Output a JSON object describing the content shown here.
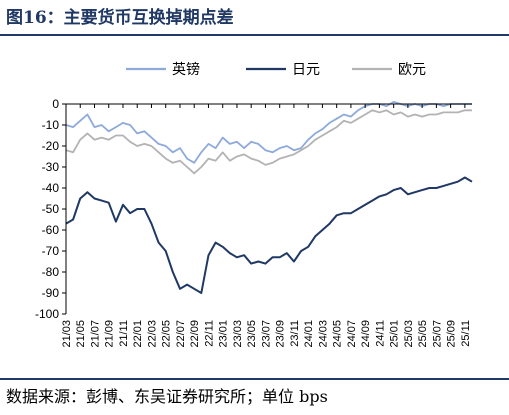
{
  "title": "图16：主要货币互换掉期点差",
  "source": "数据来源：彭博、东吴证券研究所；单位 bps",
  "chart_data": {
    "type": "line",
    "ylim": [
      -100,
      0
    ],
    "yticks": [
      0,
      -10,
      -20,
      -30,
      -40,
      -50,
      -60,
      -70,
      -80,
      -90,
      -100
    ],
    "xlim": [
      "2021-03",
      "2025-12"
    ],
    "xticks": [
      "21/03",
      "21/05",
      "21/07",
      "21/09",
      "21/11",
      "22/01",
      "22/03",
      "22/05",
      "22/07",
      "22/09",
      "22/11",
      "23/01",
      "23/03",
      "23/05",
      "23/07",
      "23/09",
      "23/11",
      "24/01",
      "24/03",
      "24/05",
      "24/07",
      "24/09",
      "24/11",
      "25/01",
      "25/03",
      "25/05",
      "25/07",
      "25/09",
      "25/11"
    ],
    "legend_position": "top",
    "grid": false,
    "series": [
      {
        "name": "英镑",
        "color": "#8eaadb",
        "points": [
          [
            "2021-03",
            -10
          ],
          [
            "2021-04",
            -11
          ],
          [
            "2021-05",
            -8
          ],
          [
            "2021-06",
            -5
          ],
          [
            "2021-07",
            -11
          ],
          [
            "2021-08",
            -10
          ],
          [
            "2021-09",
            -13
          ],
          [
            "2021-10",
            -11
          ],
          [
            "2021-11",
            -9
          ],
          [
            "2021-12",
            -10
          ],
          [
            "2022-01",
            -14
          ],
          [
            "2022-02",
            -13
          ],
          [
            "2022-03",
            -16
          ],
          [
            "2022-04",
            -19
          ],
          [
            "2022-05",
            -20
          ],
          [
            "2022-06",
            -23
          ],
          [
            "2022-07",
            -21
          ],
          [
            "2022-08",
            -26
          ],
          [
            "2022-09",
            -28
          ],
          [
            "2022-10",
            -23
          ],
          [
            "2022-11",
            -19
          ],
          [
            "2022-12",
            -21
          ],
          [
            "2023-01",
            -16
          ],
          [
            "2023-02",
            -19
          ],
          [
            "2023-03",
            -18
          ],
          [
            "2023-04",
            -21
          ],
          [
            "2023-05",
            -18
          ],
          [
            "2023-06",
            -19
          ],
          [
            "2023-07",
            -22
          ],
          [
            "2023-08",
            -23
          ],
          [
            "2023-09",
            -21
          ],
          [
            "2023-10",
            -20
          ],
          [
            "2023-11",
            -22
          ],
          [
            "2023-12",
            -21
          ],
          [
            "2024-01",
            -17
          ],
          [
            "2024-02",
            -14
          ],
          [
            "2024-03",
            -12
          ],
          [
            "2024-04",
            -9
          ],
          [
            "2024-05",
            -7
          ],
          [
            "2024-06",
            -5
          ],
          [
            "2024-07",
            -6
          ],
          [
            "2024-08",
            -3
          ],
          [
            "2024-09",
            -1
          ],
          [
            "2024-10",
            0
          ],
          [
            "2024-11",
            0
          ],
          [
            "2024-12",
            -1
          ],
          [
            "2025-01",
            1
          ],
          [
            "2025-02",
            0
          ],
          [
            "2025-03",
            -1
          ],
          [
            "2025-04",
            0
          ],
          [
            "2025-05",
            -1
          ],
          [
            "2025-06",
            0
          ],
          [
            "2025-07",
            0
          ],
          [
            "2025-08",
            -1
          ],
          [
            "2025-09",
            0
          ],
          [
            "2025-10",
            0
          ],
          [
            "2025-11",
            0
          ],
          [
            "2025-12",
            0
          ]
        ]
      },
      {
        "name": "日元",
        "color": "#1f3864",
        "points": [
          [
            "2021-03",
            -57
          ],
          [
            "2021-04",
            -55
          ],
          [
            "2021-05",
            -45
          ],
          [
            "2021-06",
            -42
          ],
          [
            "2021-07",
            -45
          ],
          [
            "2021-08",
            -46
          ],
          [
            "2021-09",
            -47
          ],
          [
            "2021-10",
            -56
          ],
          [
            "2021-11",
            -48
          ],
          [
            "2021-12",
            -52
          ],
          [
            "2022-01",
            -50
          ],
          [
            "2022-02",
            -50
          ],
          [
            "2022-03",
            -57
          ],
          [
            "2022-04",
            -66
          ],
          [
            "2022-05",
            -70
          ],
          [
            "2022-06",
            -80
          ],
          [
            "2022-07",
            -88
          ],
          [
            "2022-08",
            -86
          ],
          [
            "2022-09",
            -88
          ],
          [
            "2022-10",
            -90
          ],
          [
            "2022-11",
            -72
          ],
          [
            "2022-12",
            -66
          ],
          [
            "2023-01",
            -68
          ],
          [
            "2023-02",
            -71
          ],
          [
            "2023-03",
            -73
          ],
          [
            "2023-04",
            -72
          ],
          [
            "2023-05",
            -76
          ],
          [
            "2023-06",
            -75
          ],
          [
            "2023-07",
            -76
          ],
          [
            "2023-08",
            -73
          ],
          [
            "2023-09",
            -73
          ],
          [
            "2023-10",
            -71
          ],
          [
            "2023-11",
            -75
          ],
          [
            "2023-12",
            -70
          ],
          [
            "2024-01",
            -68
          ],
          [
            "2024-02",
            -63
          ],
          [
            "2024-03",
            -60
          ],
          [
            "2024-04",
            -57
          ],
          [
            "2024-05",
            -53
          ],
          [
            "2024-06",
            -52
          ],
          [
            "2024-07",
            -52
          ],
          [
            "2024-08",
            -50
          ],
          [
            "2024-09",
            -48
          ],
          [
            "2024-10",
            -46
          ],
          [
            "2024-11",
            -44
          ],
          [
            "2024-12",
            -43
          ],
          [
            "2025-01",
            -41
          ],
          [
            "2025-02",
            -40
          ],
          [
            "2025-03",
            -43
          ],
          [
            "2025-04",
            -42
          ],
          [
            "2025-05",
            -41
          ],
          [
            "2025-06",
            -40
          ],
          [
            "2025-07",
            -40
          ],
          [
            "2025-08",
            -39
          ],
          [
            "2025-09",
            -38
          ],
          [
            "2025-10",
            -37
          ],
          [
            "2025-11",
            -35
          ],
          [
            "2025-12",
            -37
          ]
        ]
      },
      {
        "name": "欧元",
        "color": "#b3b3b3",
        "points": [
          [
            "2021-03",
            -22
          ],
          [
            "2021-04",
            -23
          ],
          [
            "2021-05",
            -17
          ],
          [
            "2021-06",
            -14
          ],
          [
            "2021-07",
            -17
          ],
          [
            "2021-08",
            -16
          ],
          [
            "2021-09",
            -17
          ],
          [
            "2021-10",
            -15
          ],
          [
            "2021-11",
            -15
          ],
          [
            "2021-12",
            -18
          ],
          [
            "2022-01",
            -20
          ],
          [
            "2022-02",
            -19
          ],
          [
            "2022-03",
            -20
          ],
          [
            "2022-04",
            -23
          ],
          [
            "2022-05",
            -26
          ],
          [
            "2022-06",
            -28
          ],
          [
            "2022-07",
            -27
          ],
          [
            "2022-08",
            -30
          ],
          [
            "2022-09",
            -33
          ],
          [
            "2022-10",
            -30
          ],
          [
            "2022-11",
            -26
          ],
          [
            "2022-12",
            -27
          ],
          [
            "2023-01",
            -23
          ],
          [
            "2023-02",
            -27
          ],
          [
            "2023-03",
            -25
          ],
          [
            "2023-04",
            -24
          ],
          [
            "2023-05",
            -26
          ],
          [
            "2023-06",
            -27
          ],
          [
            "2023-07",
            -29
          ],
          [
            "2023-08",
            -28
          ],
          [
            "2023-09",
            -26
          ],
          [
            "2023-10",
            -25
          ],
          [
            "2023-11",
            -24
          ],
          [
            "2023-12",
            -22
          ],
          [
            "2024-01",
            -20
          ],
          [
            "2024-02",
            -17
          ],
          [
            "2024-03",
            -15
          ],
          [
            "2024-04",
            -13
          ],
          [
            "2024-05",
            -11
          ],
          [
            "2024-06",
            -8
          ],
          [
            "2024-07",
            -9
          ],
          [
            "2024-08",
            -7
          ],
          [
            "2024-09",
            -5
          ],
          [
            "2024-10",
            -3
          ],
          [
            "2024-11",
            -4
          ],
          [
            "2024-12",
            -3
          ],
          [
            "2025-01",
            -5
          ],
          [
            "2025-02",
            -4
          ],
          [
            "2025-03",
            -6
          ],
          [
            "2025-04",
            -5
          ],
          [
            "2025-05",
            -6
          ],
          [
            "2025-06",
            -5
          ],
          [
            "2025-07",
            -5
          ],
          [
            "2025-08",
            -4
          ],
          [
            "2025-09",
            -4
          ],
          [
            "2025-10",
            -4
          ],
          [
            "2025-11",
            -3
          ],
          [
            "2025-12",
            -3
          ]
        ]
      }
    ]
  }
}
